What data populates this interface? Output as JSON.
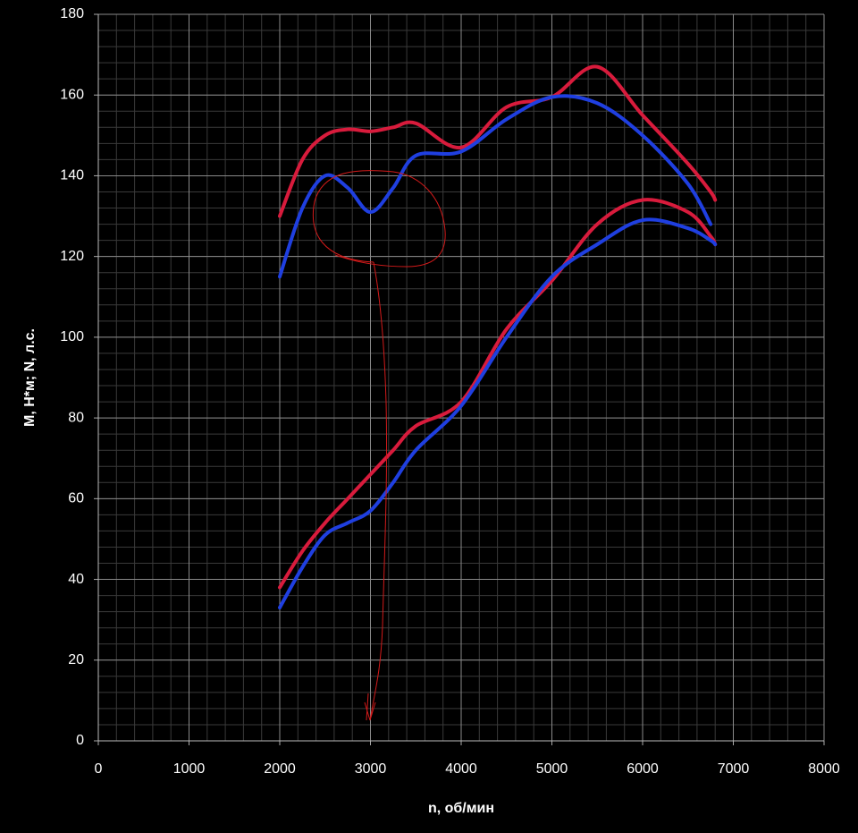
{
  "chart_data": {
    "type": "line",
    "x_label": "n, об/мин",
    "y_label": "M, H*м; N, л.с.",
    "x": [
      2000,
      2250,
      2500,
      2750,
      3000,
      3250,
      3500,
      4000,
      4500,
      5000,
      5500,
      6000,
      6500,
      6750,
      6800
    ],
    "series": [
      {
        "color": "#d81b3c",
        "values": [
          130,
          144,
          150,
          151.5,
          151,
          152,
          153,
          147,
          157,
          159.5,
          167,
          155,
          143,
          136,
          134
        ]
      },
      {
        "color": "#1f3fe0",
        "values": [
          115,
          132,
          140,
          137,
          131,
          137,
          145,
          146,
          154,
          159.5,
          158,
          150,
          138,
          128,
          null
        ]
      },
      {
        "color": "#d81b3c",
        "values": [
          38,
          47,
          54,
          60,
          66,
          72,
          78,
          84,
          102,
          114,
          128,
          134,
          131,
          125,
          123
        ]
      },
      {
        "color": "#1f3fe0",
        "values": [
          33,
          43,
          51,
          54,
          57,
          64,
          72,
          83,
          100,
          115,
          123,
          129,
          127,
          124,
          123
        ]
      }
    ],
    "xlim": [
      0,
      8000
    ],
    "xticks": [
      0,
      1000,
      2000,
      3000,
      4000,
      5000,
      6000,
      7000,
      8000
    ],
    "ylim": [
      0,
      180
    ],
    "yticks": [
      0,
      20,
      40,
      60,
      80,
      100,
      120,
      140,
      160,
      180
    ],
    "grid": true,
    "minor_grid": true
  }
}
